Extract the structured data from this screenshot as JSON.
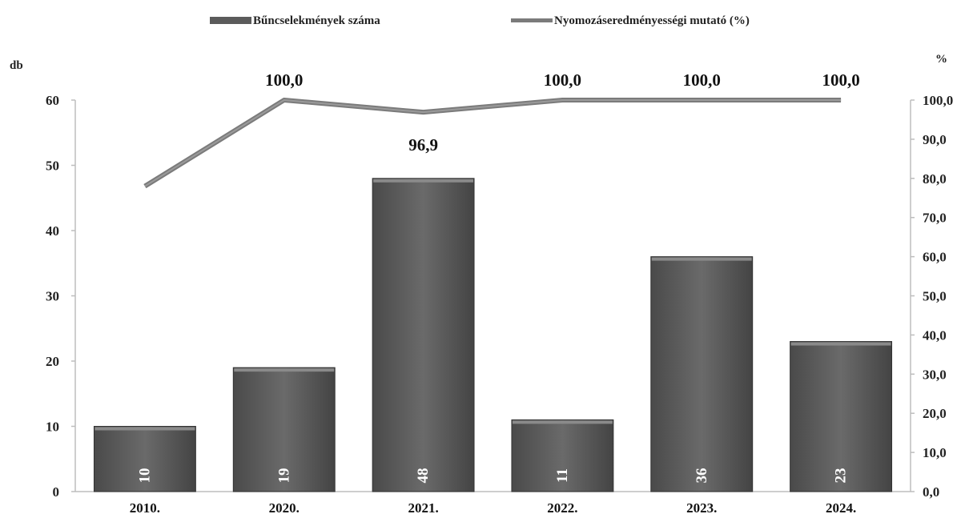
{
  "chart_data": {
    "type": "bar-line",
    "legend": {
      "position": "top",
      "bar_label": "Bűncselekmények száma",
      "line_label": "Nyomozáseredményességi mutató (%)"
    },
    "y_left_unit": "db",
    "y_right_unit": "%",
    "categories": [
      "2010.",
      "2020.",
      "2021.",
      "2022.",
      "2023.",
      "2024."
    ],
    "bars": {
      "name": "Bűncselekmények száma",
      "values": [
        10,
        19,
        48,
        11,
        36,
        23
      ],
      "labels": [
        "10",
        "19",
        "48",
        "11",
        "36",
        "23"
      ],
      "color": "#5b5b5b"
    },
    "line": {
      "name": "Nyomozáseredményességi mutató (%)",
      "values": [
        78.0,
        100.0,
        96.9,
        100.0,
        100.0,
        100.0
      ],
      "labels": [
        "",
        "100,0",
        "96,9",
        "100,0",
        "100,0",
        "100,0"
      ],
      "color": "#7b7b7b"
    },
    "y_left": {
      "min": 0,
      "max": 60,
      "step": 10,
      "ticks": [
        "0",
        "10",
        "20",
        "30",
        "40",
        "50",
        "60"
      ]
    },
    "y_right": {
      "min": 0,
      "max": 100,
      "step": 10,
      "ticks": [
        "0,0",
        "10,0",
        "20,0",
        "30,0",
        "40,0",
        "50,0",
        "60,0",
        "70,0",
        "80,0",
        "90,0",
        "100,0"
      ]
    },
    "grid": false
  }
}
